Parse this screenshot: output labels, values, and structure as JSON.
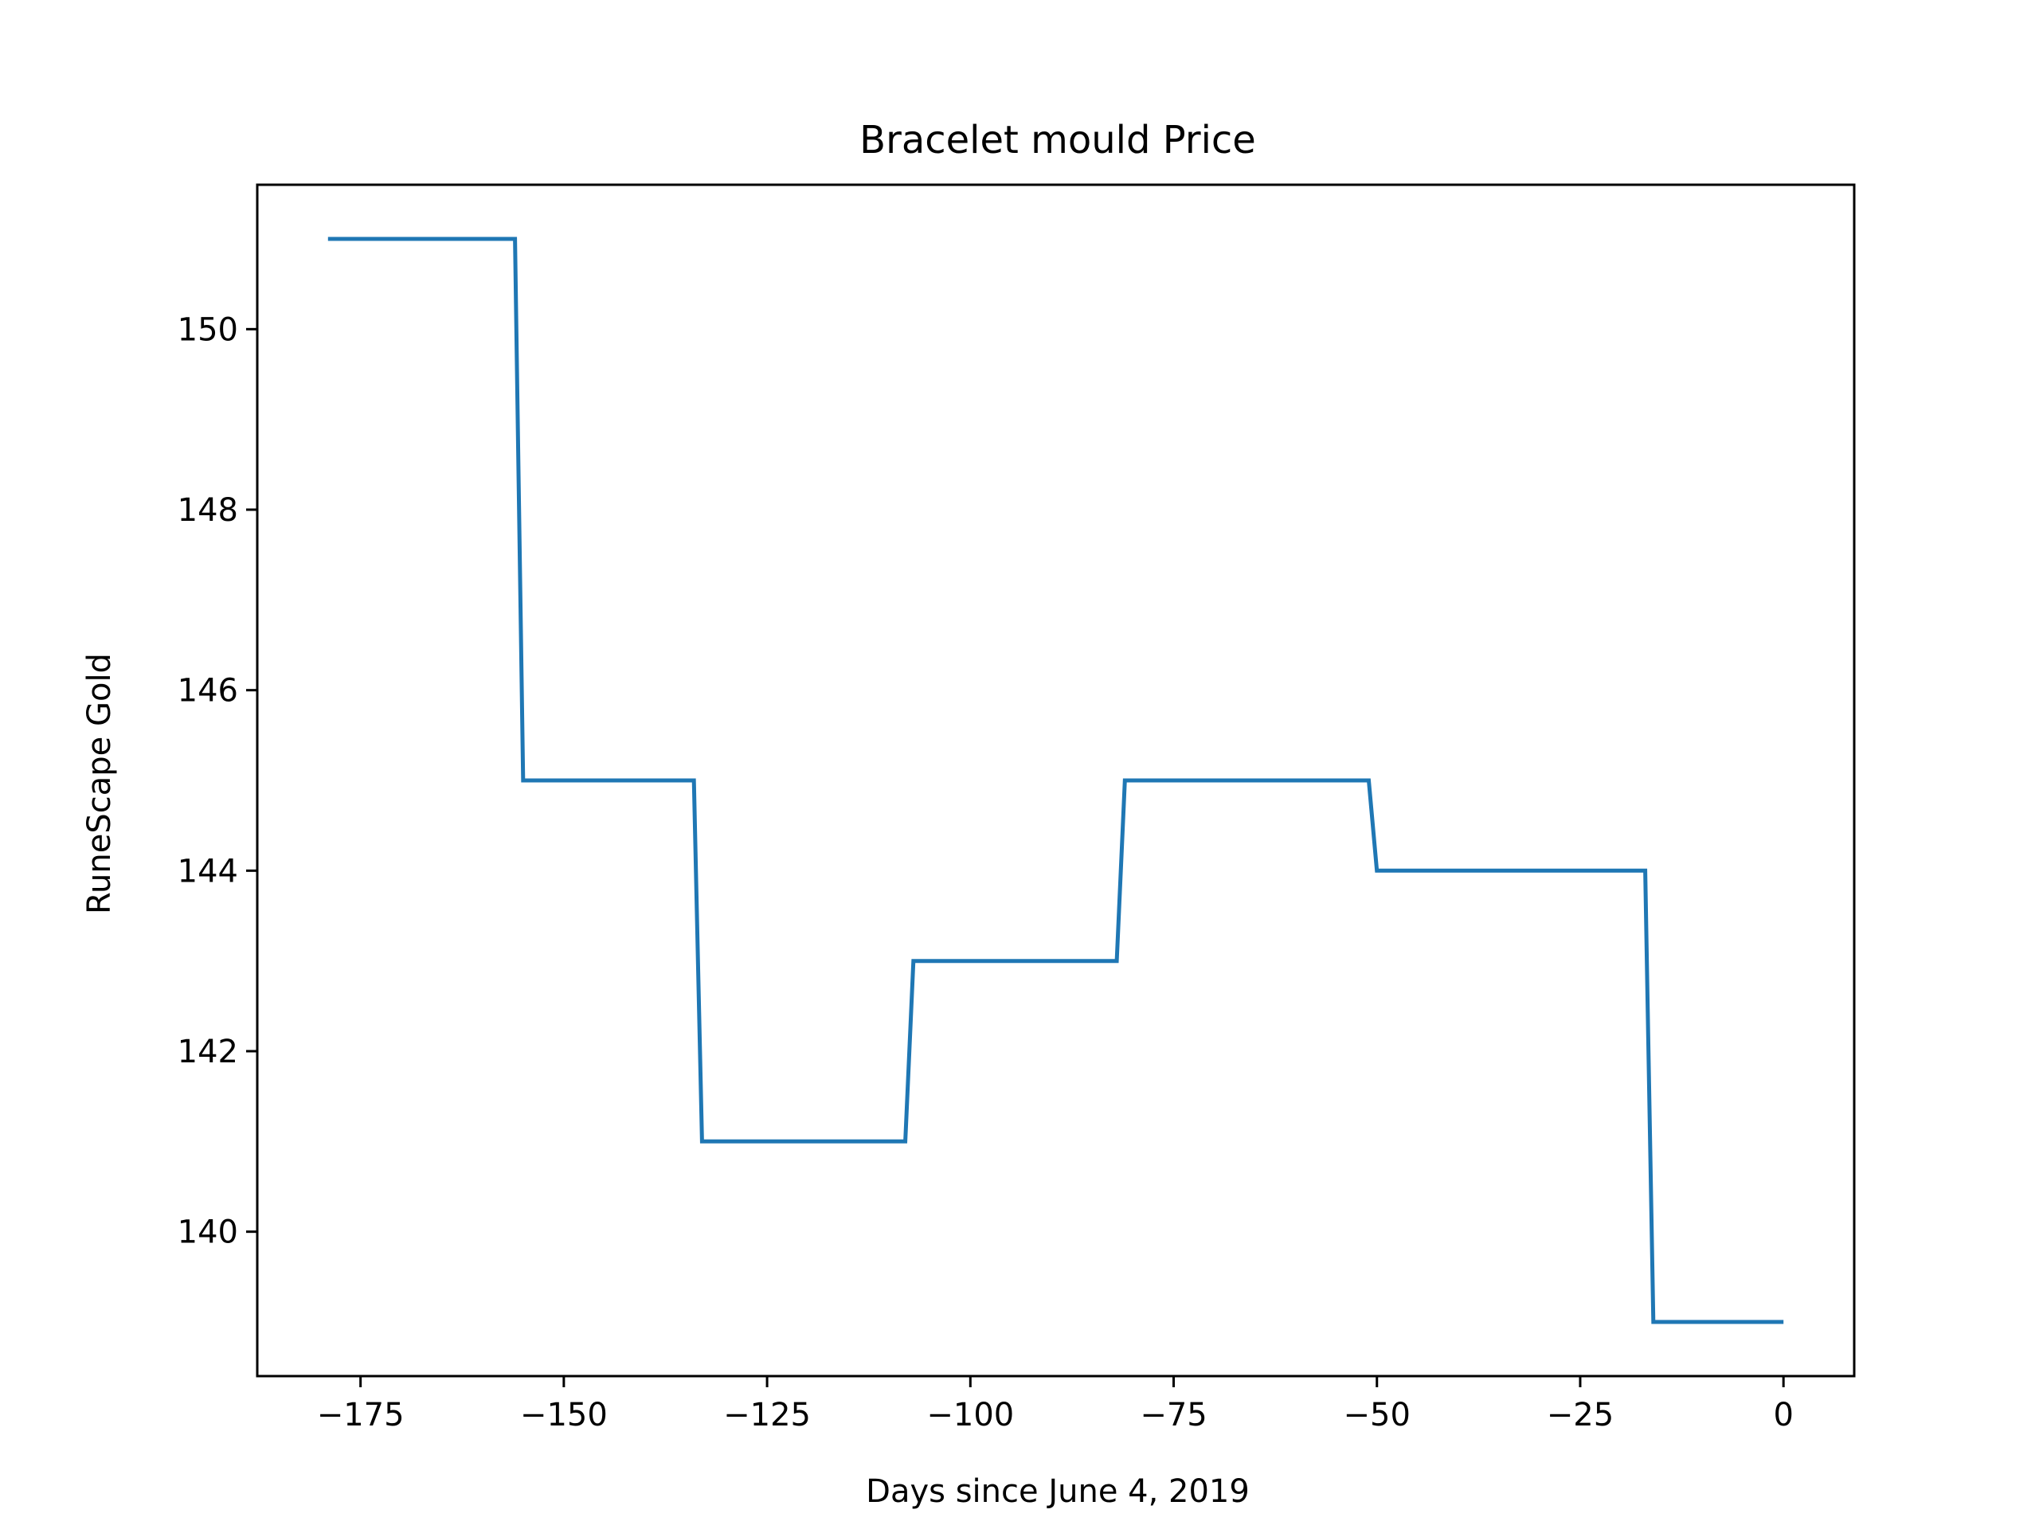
{
  "chart_data": {
    "type": "line",
    "title": "Bracelet mould Price",
    "xlabel": "Days since June 4, 2019",
    "ylabel": "RuneScape Gold",
    "xlim": [
      -187.7,
      8.7
    ],
    "ylim": [
      138.4,
      151.6
    ],
    "xticks": [
      -175,
      -150,
      -125,
      -100,
      -75,
      -50,
      -25,
      0
    ],
    "xtick_labels": [
      "−175",
      "−150",
      "−125",
      "−100",
      "−75",
      "−50",
      "−25",
      "0"
    ],
    "yticks": [
      140,
      142,
      144,
      146,
      148,
      150
    ],
    "ytick_labels": [
      "140",
      "142",
      "144",
      "146",
      "148",
      "150"
    ],
    "grid": false,
    "series": [
      {
        "color": "#1f77b4",
        "x": [
          -179,
          -156,
          -155,
          -134,
          -133,
          -108,
          -107,
          -82,
          -81,
          -51,
          -50,
          -17,
          -16,
          0
        ],
        "y": [
          151,
          151,
          145,
          145,
          141,
          141,
          143,
          143,
          145,
          145,
          144,
          144,
          139,
          139
        ]
      }
    ]
  }
}
